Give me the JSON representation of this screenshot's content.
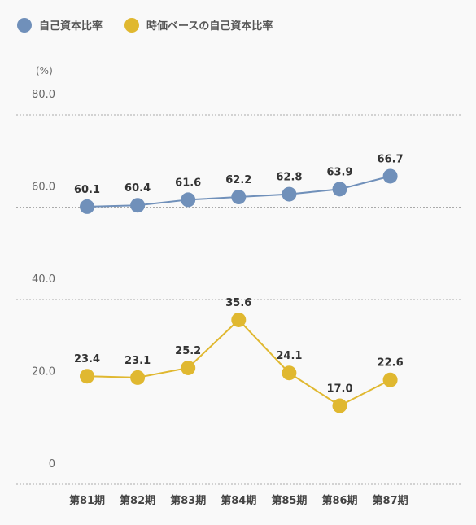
{
  "chart_data": {
    "type": "line",
    "unit": "(%)",
    "categories": [
      "第81期",
      "第82期",
      "第83期",
      "第84期",
      "第85期",
      "第86期",
      "第87期"
    ],
    "yticks": [
      "80.0",
      "60.0",
      "40.0",
      "20.0",
      "0"
    ],
    "ylim": [
      0,
      80
    ],
    "grid": true,
    "legend": "top-left",
    "series": [
      {
        "name": "自己資本比率",
        "color": "#7090ba",
        "values": [
          60.1,
          60.4,
          61.6,
          62.2,
          62.8,
          63.9,
          66.7
        ],
        "labels": [
          "60.1",
          "60.4",
          "61.6",
          "62.2",
          "62.8",
          "63.9",
          "66.7"
        ]
      },
      {
        "name": "時価ベースの自己資本比率",
        "color": "#e0b830",
        "values": [
          23.4,
          23.1,
          25.2,
          35.6,
          24.1,
          17.0,
          22.6
        ],
        "labels": [
          "23.4",
          "23.1",
          "25.2",
          "35.6",
          "24.1",
          "17.0",
          "22.6"
        ]
      }
    ]
  }
}
